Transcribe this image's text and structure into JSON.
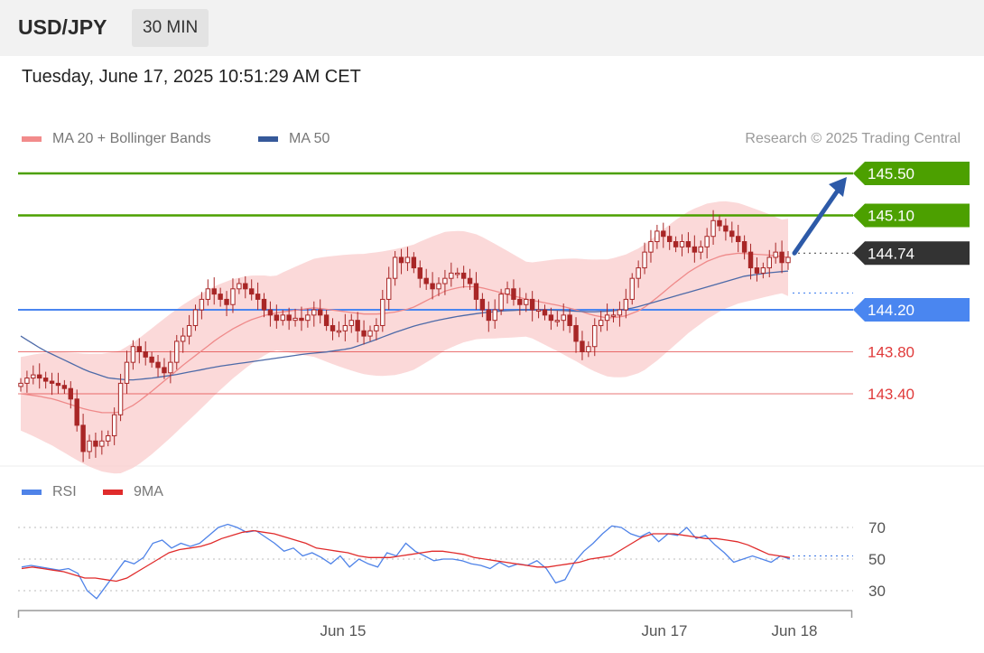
{
  "header": {
    "pair": "USD/JPY",
    "timeframe": "30 MIN"
  },
  "timestamp": "Tuesday, June 17, 2025 10:51:29 AM CET",
  "legend": {
    "bollinger_label": "MA 20 + Bollinger Bands",
    "ma50_label": "MA 50",
    "credit": "Research © 2025 Trading Central"
  },
  "rsi_legend": {
    "rsi_label": "RSI",
    "ma_label": "9MA"
  },
  "colors": {
    "resistance": "#4ca000",
    "support": "#4a86f0",
    "target": "#4ca000",
    "red_level": "#e03a3a",
    "candle": "#a82626",
    "band": "#f9cccc",
    "ma20": "#ef8a8a",
    "ma50": "#4d6aa8",
    "current": "#333333",
    "rsi": "#4f83e8",
    "rsi_ma": "#e02b2b"
  },
  "chart_data": [
    {
      "type": "line",
      "title": "",
      "description_series": "USD/JPY 30-minute candlesticks with MA 20, Bollinger Bands and MA 50",
      "y_range": [
        142.6,
        145.7
      ],
      "levels": [
        {
          "label": "145.50",
          "value": 145.5,
          "kind": "resistance"
        },
        {
          "label": "145.10",
          "value": 145.1,
          "kind": "resistance"
        },
        {
          "label": "144.74",
          "value": 144.74,
          "kind": "current"
        },
        {
          "label": "144.20",
          "value": 144.2,
          "kind": "support"
        },
        {
          "label": "143.80",
          "value": 143.8,
          "kind": "minor"
        },
        {
          "label": "143.40",
          "value": 143.4,
          "kind": "minor"
        }
      ],
      "x_ticks": [
        "Jun 15",
        "Jun 17",
        "Jun 18"
      ],
      "close_series": [
        143.5,
        143.55,
        143.58,
        143.55,
        143.52,
        143.5,
        143.48,
        143.45,
        143.35,
        143.1,
        142.85,
        142.95,
        142.9,
        142.95,
        143.0,
        143.2,
        143.5,
        143.7,
        143.85,
        143.8,
        143.75,
        143.7,
        143.65,
        143.6,
        143.7,
        143.9,
        143.95,
        144.05,
        144.2,
        144.3,
        144.4,
        144.35,
        144.3,
        144.25,
        144.4,
        144.45,
        144.4,
        144.35,
        144.3,
        144.2,
        144.15,
        144.1,
        144.15,
        144.1,
        144.12,
        144.1,
        144.15,
        144.2,
        144.15,
        144.05,
        144.0,
        144.0,
        144.05,
        144.1,
        144.0,
        143.95,
        144.0,
        144.05,
        144.3,
        144.5,
        144.7,
        144.65,
        144.7,
        144.6,
        144.5,
        144.45,
        144.4,
        144.45,
        144.5,
        144.55,
        144.55,
        144.5,
        144.45,
        144.3,
        144.2,
        144.1,
        144.2,
        144.35,
        144.4,
        144.3,
        144.25,
        144.3,
        144.2,
        144.2,
        144.15,
        144.1,
        144.1,
        144.15,
        144.05,
        143.9,
        143.8,
        143.85,
        144.05,
        144.1,
        144.15,
        144.15,
        144.2,
        144.3,
        144.5,
        144.6,
        144.75,
        144.85,
        144.95,
        144.9,
        144.85,
        144.8,
        144.85,
        144.8,
        144.75,
        144.8,
        144.9,
        145.05,
        145.0,
        144.95,
        144.9,
        144.85,
        144.75,
        144.6,
        144.55,
        144.6,
        144.7,
        144.75,
        144.65,
        144.7
      ],
      "ma20_series": [
        143.4,
        143.38,
        143.35,
        143.3,
        143.25,
        143.22,
        143.22,
        143.3,
        143.42,
        143.55,
        143.68,
        143.8,
        143.92,
        144.02,
        144.1,
        144.15,
        144.18,
        144.2,
        144.22,
        144.2,
        144.18,
        144.16,
        144.16,
        144.18,
        144.22,
        144.3,
        144.38,
        144.42,
        144.42,
        144.38,
        144.34,
        144.3,
        144.27,
        144.24,
        144.2,
        144.15,
        144.12,
        144.14,
        144.2,
        144.32,
        144.45,
        144.57,
        144.66,
        144.72,
        144.74,
        144.73,
        144.72,
        144.7
      ],
      "ma50_series": [
        143.95,
        143.82,
        143.72,
        143.62,
        143.55,
        143.53,
        143.55,
        143.58,
        143.62,
        143.66,
        143.69,
        143.72,
        143.75,
        143.78,
        143.8,
        143.83,
        143.9,
        143.98,
        144.05,
        144.1,
        144.14,
        144.17,
        144.19,
        144.2,
        144.2,
        144.19,
        144.18,
        144.19,
        144.22,
        144.28,
        144.34,
        144.4,
        144.46,
        144.52,
        144.55,
        144.57
      ]
    },
    {
      "type": "line",
      "title": "",
      "y_ticks": [
        70,
        50,
        30
      ],
      "y_range": [
        20,
        80
      ],
      "series": [
        {
          "name": "RSI",
          "values": [
            45,
            46,
            45,
            44,
            43,
            44,
            41,
            30,
            25,
            33,
            41,
            49,
            47,
            51,
            60,
            62,
            57,
            60,
            58,
            60,
            65,
            70,
            72,
            70,
            67,
            68,
            64,
            60,
            55,
            57,
            52,
            54,
            51,
            47,
            52,
            45,
            50,
            47,
            45,
            54,
            52,
            60,
            55,
            52,
            49,
            50,
            50,
            49,
            47,
            46,
            44,
            48,
            45,
            47,
            46,
            49,
            44,
            35,
            37,
            48,
            55,
            60,
            66,
            71,
            70,
            66,
            64,
            67,
            61,
            66,
            65,
            70,
            63,
            65,
            59,
            54,
            48,
            50,
            52,
            50,
            48,
            52,
            50
          ]
        },
        {
          "name": "9MA",
          "values": [
            44,
            45,
            44,
            43,
            42,
            40,
            38,
            38,
            37,
            36,
            38,
            42,
            46,
            50,
            54,
            56,
            57,
            58,
            60,
            63,
            65,
            67,
            68,
            67,
            66,
            64,
            62,
            60,
            57,
            56,
            55,
            54,
            52,
            51,
            51,
            51,
            52,
            53,
            54,
            55,
            55,
            54,
            53,
            51,
            50,
            49,
            48,
            47,
            46,
            45,
            45,
            46,
            47,
            48,
            50,
            51,
            52,
            56,
            60,
            64,
            66,
            66,
            66,
            65,
            64,
            63,
            63,
            62,
            61,
            59,
            56,
            53,
            52,
            51
          ]
        }
      ]
    }
  ]
}
